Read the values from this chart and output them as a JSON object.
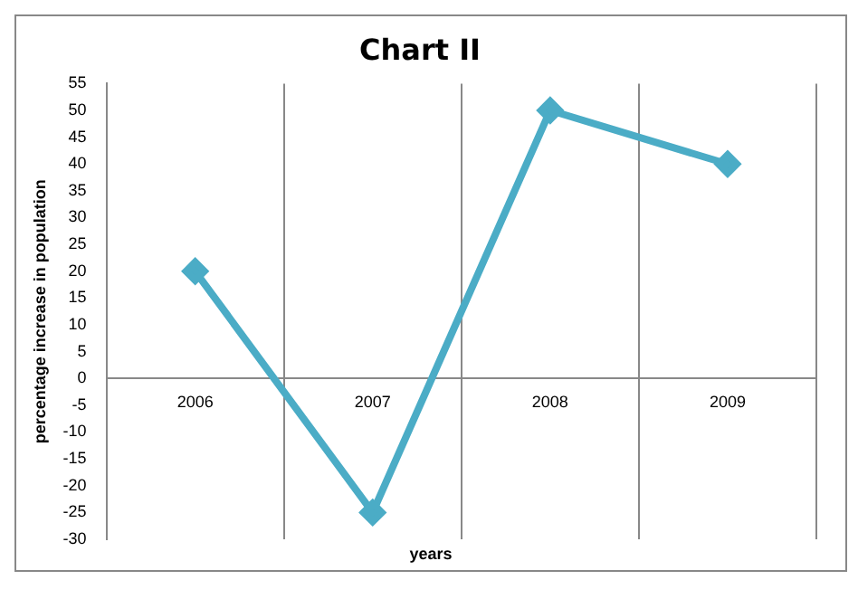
{
  "chart_data": {
    "type": "line",
    "title": "Chart II",
    "xlabel": "years",
    "ylabel": "percentage increase in population",
    "categories": [
      "2006",
      "2007",
      "2008",
      "2009"
    ],
    "series": [
      {
        "color": "#4bacc6",
        "values": [
          20,
          -25,
          50,
          40
        ]
      }
    ],
    "ylim": [
      -30,
      55
    ],
    "yticks": [
      -30,
      -25,
      -20,
      -15,
      -10,
      -5,
      0,
      5,
      10,
      15,
      20,
      25,
      30,
      35,
      40,
      45,
      50,
      55
    ],
    "grid": "x",
    "legend": false,
    "marker": "diamond",
    "line_style": "solid"
  }
}
